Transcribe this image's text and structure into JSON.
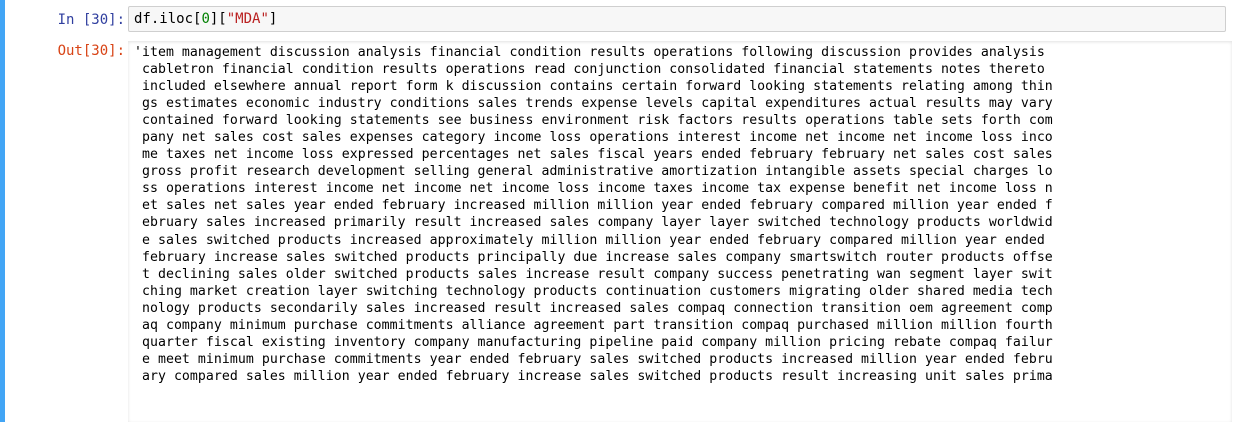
{
  "notebook": {
    "accent_color": "#42a5f5",
    "input_cell": {
      "prompt": "In [30]:",
      "code_tokens": [
        {
          "kind": "var",
          "text": "df.iloc["
        },
        {
          "kind": "num",
          "text": "0"
        },
        {
          "kind": "var",
          "text": "]["
        },
        {
          "kind": "str",
          "text": "\"MDA\""
        },
        {
          "kind": "var",
          "text": "]"
        }
      ]
    },
    "output_cell": {
      "prompt": "Out[30]:",
      "lines": [
        "'item management discussion analysis financial condition results operations following discussion provides analysis",
        " cabletron financial condition results operations read conjunction consolidated financial statements notes thereto",
        " included elsewhere annual report form k discussion contains certain forward looking statements relating among thin",
        " gs estimates economic industry conditions sales trends expense levels capital expenditures actual results may vary",
        " contained forward looking statements see business environment risk factors results operations table sets forth com",
        " pany net sales cost sales expenses category income loss operations interest income net income net income loss inco",
        " me taxes net income loss expressed percentages net sales fiscal years ended february february net sales cost sales",
        " gross profit research development selling general administrative amortization intangible assets special charges lo",
        " ss operations interest income net income net income loss income taxes income tax expense benefit net income loss n",
        " et sales net sales year ended february increased million million year ended february compared million year ended f",
        " ebruary sales increased primarily result increased sales company layer layer switched technology products worldwid",
        " e sales switched products increased approximately million million year ended february compared million year ended ",
        " february increase sales switched products principally due increase sales company smartswitch router products offse",
        " t declining sales older switched products sales increase result company success penetrating wan segment layer swit",
        " ching market creation layer switching technology products continuation customers migrating older shared media tech",
        " nology products secondarily sales increased result increased sales compaq connection transition oem agreement comp",
        " aq company minimum purchase commitments alliance agreement part transition compaq purchased million million fourth",
        " quarter fiscal existing inventory company manufacturing pipeline paid company million pricing rebate compaq failur",
        " e meet minimum purchase commitments year ended february sales switched products increased million year ended febru",
        " ary compared sales million year ended february increase sales switched products result increasing unit sales prima"
      ]
    }
  }
}
